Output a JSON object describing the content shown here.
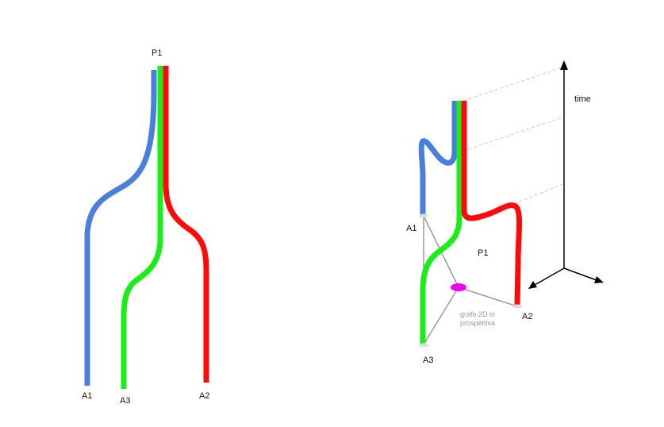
{
  "colors": {
    "blue": "#4a7fdb",
    "green": "#19ee19",
    "red": "#ff0a0a",
    "magenta": "#ee00ee",
    "graph_edge": "#9a9a9a",
    "node": "#dddddd",
    "time_lines": "#c8c8c8",
    "axis": "#000000"
  },
  "left_diagram": {
    "labels": {
      "p1": "P1",
      "a1": "A1",
      "a2": "A2",
      "a3": "A3"
    }
  },
  "right_diagram": {
    "labels": {
      "a1": "A1",
      "a2": "A2",
      "a3": "A3",
      "p1": "P1",
      "caption_line1": "grafo 2D in",
      "caption_line2": "prospettiva",
      "time": "time"
    }
  }
}
